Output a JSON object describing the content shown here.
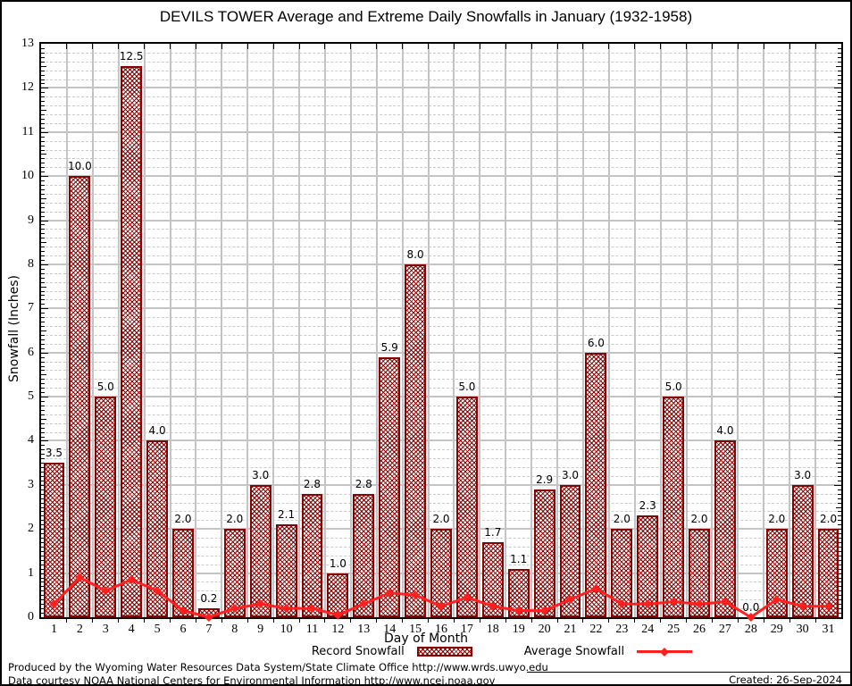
{
  "page": {
    "title": "DEVILS TOWER Average and Extreme Daily Snowfalls in January (1932-1958)",
    "footer_line1": "Produced by the Wyoming Water Resources Data System/State Climate Office http://www.wrds.uwyo.edu",
    "footer_line2": "Data courtesy NOAA National Centers for Environmental Information http://www.ncei.noaa.gov",
    "created": "Created: 26-Sep-2024"
  },
  "legend": {
    "record_label": "Record Snowfall",
    "average_label": "Average Snowfall"
  },
  "colors": {
    "bar_border": "#8b0000",
    "bar_hatch": "#8b0000",
    "line": "#ff1f1f",
    "grid_major": "#c4c4c4",
    "grid_minor": "#cbcbcb",
    "frame": "#000000"
  },
  "chart_data": {
    "type": "bar",
    "title": "DEVILS TOWER Average and Extreme Daily Snowfalls in January (1932-1958)",
    "xlabel": "Day of Month",
    "ylabel": "Snowfall (Inches)",
    "ylim": [
      0,
      13
    ],
    "y_major_tick_step": 1,
    "y_minor_grid_step": 0.2,
    "y_minor_tick_step": 0.1,
    "grid": true,
    "legend_position": "bottom",
    "categories": [
      1,
      2,
      3,
      4,
      5,
      6,
      7,
      8,
      9,
      10,
      11,
      12,
      13,
      14,
      15,
      16,
      17,
      18,
      19,
      20,
      21,
      22,
      23,
      24,
      25,
      26,
      27,
      28,
      29,
      30,
      31
    ],
    "series": [
      {
        "name": "Record Snowfall",
        "type": "bar",
        "color": "#8b0000",
        "values": [
          3.5,
          10.0,
          5.0,
          12.5,
          4.0,
          2.0,
          0.2,
          2.0,
          3.0,
          2.1,
          2.8,
          1.0,
          2.8,
          5.9,
          8.0,
          2.0,
          5.0,
          1.7,
          1.1,
          2.9,
          3.0,
          6.0,
          2.0,
          2.3,
          5.0,
          2.0,
          4.0,
          0.0,
          2.0,
          3.0,
          2.0
        ],
        "labels": [
          "3.5",
          "10.0",
          "5.0",
          "12.5",
          "4.0",
          "2.0",
          "0.2",
          "2.0",
          "3.0",
          "2.1",
          "2.8",
          "1.0",
          "2.8",
          "5.9",
          "8.0",
          "2.0",
          "5.0",
          "1.7",
          "1.1",
          "2.9",
          "3.0",
          "6.0",
          "2.0",
          "2.3",
          "5.0",
          "2.0",
          "4.0",
          "0.0",
          "2.0",
          "3.0",
          "2.0"
        ]
      },
      {
        "name": "Average Snowfall",
        "type": "line",
        "color": "#ff1f1f",
        "values": [
          0.3,
          0.9,
          0.6,
          0.85,
          0.6,
          0.15,
          0.0,
          0.2,
          0.3,
          0.2,
          0.2,
          0.05,
          0.3,
          0.55,
          0.5,
          0.25,
          0.45,
          0.25,
          0.15,
          0.15,
          0.4,
          0.65,
          0.3,
          0.3,
          0.35,
          0.3,
          0.35,
          0.0,
          0.4,
          0.25,
          0.25
        ]
      }
    ]
  }
}
